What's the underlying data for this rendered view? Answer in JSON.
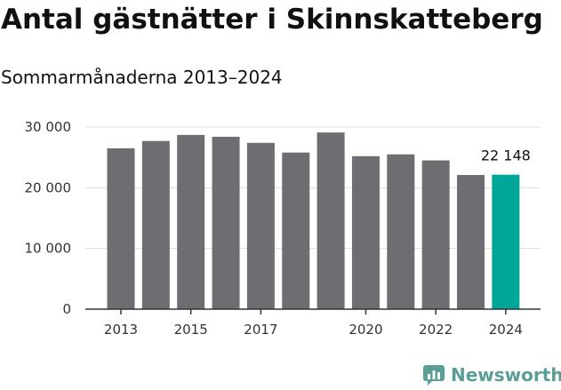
{
  "title": "Antal gästnätter i Skinnskatteberg",
  "subtitle": "Sommarmånaderna 2013–2024",
  "logo": {
    "text": "Newsworthy",
    "color": "#5b9e96"
  },
  "chart_data": {
    "type": "bar",
    "categories": [
      "2013",
      "2014",
      "2015",
      "2016",
      "2017",
      "2018",
      "2019",
      "2020",
      "2021",
      "2022",
      "2023",
      "2024"
    ],
    "values": [
      26500,
      27700,
      28700,
      28400,
      27400,
      25800,
      29100,
      25200,
      25500,
      24500,
      22100,
      22148
    ],
    "x_tick_labels": [
      "2013",
      "",
      "2015",
      "",
      "2017",
      "",
      "",
      "2020",
      "",
      "2022",
      "",
      "2024"
    ],
    "y_ticks": [
      0,
      10000,
      20000,
      30000
    ],
    "y_tick_labels": [
      "0",
      "10 000",
      "20 000",
      "30 000"
    ],
    "ylim": [
      0,
      30000
    ],
    "grid": true,
    "bar_color": "#6e6d72",
    "highlight_color": "#00a698",
    "highlight_index": 11,
    "annotation": "22 148"
  }
}
